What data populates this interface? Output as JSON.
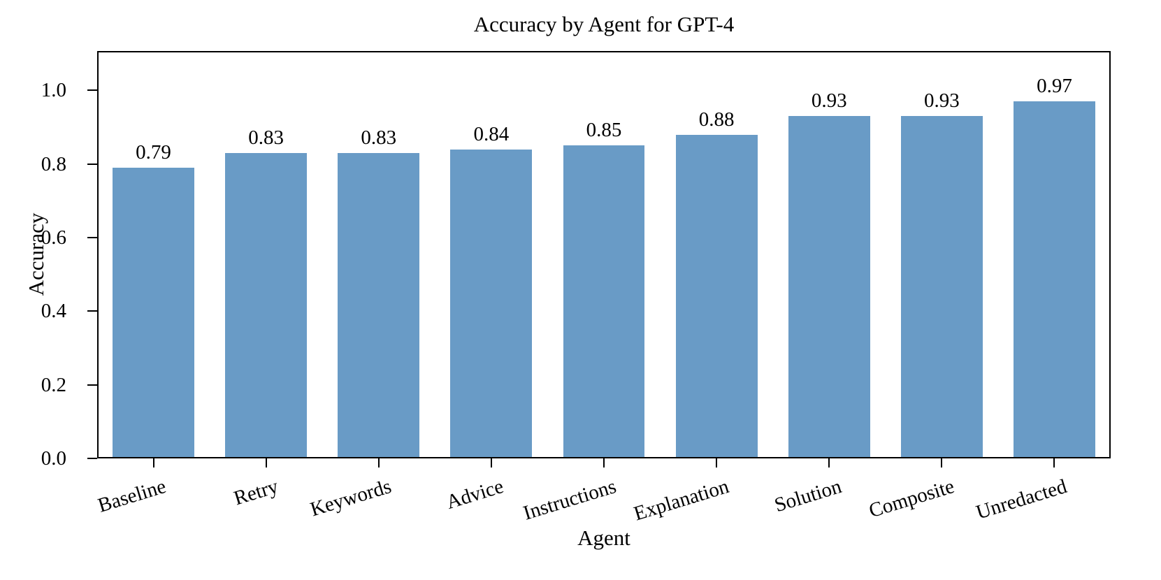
{
  "chart_data": {
    "type": "bar",
    "title": "Accuracy by Agent for GPT-4",
    "xlabel": "Agent",
    "ylabel": "Accuracy",
    "categories": [
      "Baseline",
      "Retry",
      "Keywords",
      "Advice",
      "Instructions",
      "Explanation",
      "Solution",
      "Composite",
      "Unredacted"
    ],
    "values": [
      0.79,
      0.83,
      0.83,
      0.84,
      0.85,
      0.88,
      0.93,
      0.93,
      0.97
    ],
    "bar_labels": [
      "0.79",
      "0.83",
      "0.83",
      "0.84",
      "0.85",
      "0.88",
      "0.93",
      "0.93",
      "0.97"
    ],
    "yticks": [
      "0.0",
      "0.2",
      "0.4",
      "0.6",
      "0.8",
      "1.0"
    ],
    "ylim": [
      0.0,
      1.107
    ],
    "bar_color": "#699bc6",
    "axis_color": "#000000",
    "text_color": "#000000",
    "grid": false,
    "legend": "none"
  }
}
